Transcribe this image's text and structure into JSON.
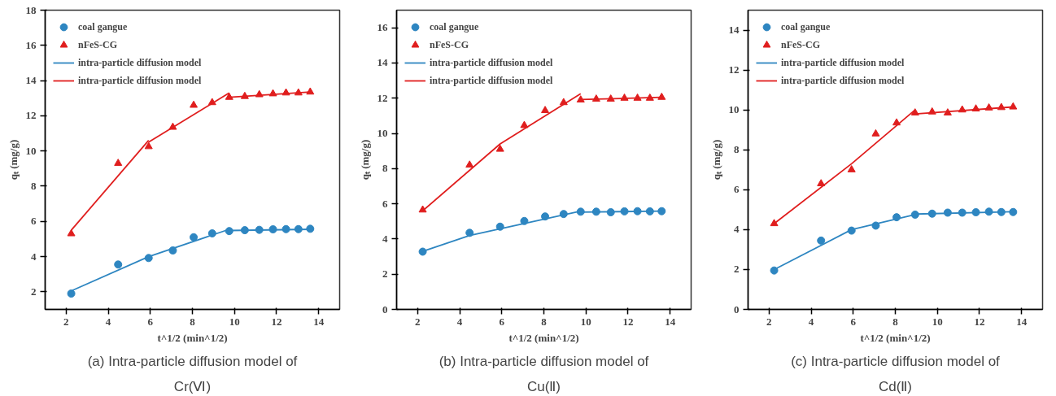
{
  "chart_data": [
    {
      "type": "scatter",
      "xlabel": "t^1/2 (min^1/2)",
      "ylabel": "qₜ (mg/g)",
      "xlim": [
        1,
        15
      ],
      "xticks": [
        2,
        4,
        6,
        8,
        10,
        12,
        14
      ],
      "ylim": [
        1,
        18
      ],
      "yticks": [
        2,
        4,
        6,
        8,
        10,
        12,
        14,
        16,
        18
      ],
      "legend": "top left",
      "annotations": [
        "(a) Intra-particle diffusion model of",
        "Cr(Ⅵ)"
      ],
      "series": [
        {
          "name": "coal gangue",
          "marker": "circle",
          "color": "#2e86c1",
          "x": [
            2.24,
            4.47,
            5.92,
            7.07,
            8.06,
            8.94,
            9.75,
            10.49,
            11.18,
            11.83,
            12.45,
            13.04,
            13.6
          ],
          "values": [
            1.9,
            3.55,
            3.92,
            4.35,
            5.1,
            5.32,
            5.45,
            5.5,
            5.52,
            5.55,
            5.56,
            5.56,
            5.58
          ]
        },
        {
          "name": "nFeS-CG",
          "marker": "triangle",
          "color": "#e01e1e",
          "x": [
            2.24,
            4.47,
            5.92,
            7.07,
            8.06,
            8.94,
            9.75,
            10.49,
            11.18,
            11.83,
            12.45,
            13.04,
            13.6
          ],
          "values": [
            5.3,
            9.3,
            10.25,
            11.35,
            12.6,
            12.75,
            13.05,
            13.1,
            13.2,
            13.25,
            13.3,
            13.3,
            13.35
          ]
        },
        {
          "name": "intra-particle diffusion model",
          "type": "line",
          "color": "#2e86c1",
          "x": [
            2.24,
            5.92,
            9.75
          ],
          "values": [
            2.05,
            4.0,
            5.55
          ]
        },
        {
          "name": "intra-particle diffusion model",
          "type": "line",
          "color": "#e01e1e",
          "x": [
            2.24,
            5.92
          ],
          "values": [
            5.5,
            10.6
          ]
        },
        {
          "type": "line",
          "color": "#2e86c1",
          "x": [
            9.75,
            13.6
          ],
          "values": [
            5.48,
            5.55
          ]
        },
        {
          "type": "line",
          "color": "#e01e1e",
          "x": [
            5.92,
            9.75
          ],
          "values": [
            10.5,
            13.3
          ]
        },
        {
          "type": "line",
          "color": "#e01e1e",
          "x": [
            9.75,
            13.6
          ],
          "values": [
            13.05,
            13.35
          ]
        }
      ]
    },
    {
      "type": "scatter",
      "xlabel": "t^1/2 (min^1/2)",
      "ylabel": "qₜ (mg/g)",
      "xlim": [
        1,
        15
      ],
      "xticks": [
        2,
        4,
        6,
        8,
        10,
        12,
        14
      ],
      "ylim": [
        0,
        17
      ],
      "yticks": [
        0,
        2,
        4,
        6,
        8,
        10,
        12,
        14,
        16
      ],
      "legend": "top left",
      "annotations": [
        "(b) Intra-particle diffusion model of",
        "Cu(Ⅱ)"
      ],
      "series": [
        {
          "name": "coal gangue",
          "marker": "circle",
          "color": "#2e86c1",
          "x": [
            2.24,
            4.47,
            5.92,
            7.07,
            8.06,
            8.94,
            9.75,
            10.49,
            11.18,
            11.83,
            12.45,
            13.04,
            13.6
          ],
          "values": [
            3.28,
            4.35,
            4.7,
            5.02,
            5.28,
            5.42,
            5.55,
            5.55,
            5.52,
            5.57,
            5.58,
            5.57,
            5.58
          ]
        },
        {
          "name": "nFeS-CG",
          "marker": "triangle",
          "color": "#e01e1e",
          "x": [
            2.24,
            4.47,
            5.92,
            7.07,
            8.06,
            8.94,
            9.75,
            10.49,
            11.18,
            11.83,
            12.45,
            13.04,
            13.6
          ],
          "values": [
            5.65,
            8.2,
            9.1,
            10.45,
            11.3,
            11.75,
            11.9,
            11.95,
            11.95,
            12.0,
            12.0,
            12.0,
            12.05
          ]
        },
        {
          "name": "intra-particle diffusion model",
          "type": "line",
          "color": "#2e86c1",
          "x": [
            2.24,
            4.47,
            9.75
          ],
          "values": [
            3.3,
            4.2,
            5.58
          ]
        },
        {
          "name": "intra-particle diffusion model",
          "type": "line",
          "color": "#e01e1e",
          "x": [
            2.24,
            5.92,
            9.75
          ],
          "values": [
            5.6,
            9.4,
            12.25
          ]
        },
        {
          "type": "line",
          "color": "#2e86c1",
          "x": [
            9.75,
            13.6
          ],
          "values": [
            5.53,
            5.58
          ]
        },
        {
          "type": "line",
          "color": "#e01e1e",
          "x": [
            9.75,
            13.6
          ],
          "values": [
            11.92,
            12.05
          ]
        }
      ]
    },
    {
      "type": "scatter",
      "xlabel": "t^1/2 (min^1/2)",
      "ylabel": "qₜ (mg/g)",
      "xlim": [
        1,
        15
      ],
      "xticks": [
        2,
        4,
        6,
        8,
        10,
        12,
        14
      ],
      "ylim": [
        0,
        15
      ],
      "yticks": [
        0,
        2,
        4,
        6,
        8,
        10,
        12,
        14
      ],
      "legend": "top left",
      "annotations": [
        "(c) Intra-particle diffusion model of",
        "Cd(Ⅱ)"
      ],
      "series": [
        {
          "name": "coal gangue",
          "marker": "circle",
          "color": "#2e86c1",
          "x": [
            2.24,
            4.47,
            5.92,
            7.07,
            8.06,
            8.94,
            9.75,
            10.49,
            11.18,
            11.83,
            12.45,
            13.04,
            13.6
          ],
          "values": [
            1.95,
            3.45,
            3.95,
            4.2,
            4.62,
            4.75,
            4.8,
            4.85,
            4.85,
            4.87,
            4.9,
            4.88,
            4.88
          ]
        },
        {
          "name": "nFeS-CG",
          "marker": "triangle",
          "color": "#e01e1e",
          "x": [
            2.24,
            4.47,
            5.92,
            7.07,
            8.06,
            8.94,
            9.75,
            10.49,
            11.18,
            11.83,
            12.45,
            13.04,
            13.6
          ],
          "values": [
            4.3,
            6.3,
            7.0,
            8.8,
            9.35,
            9.85,
            9.9,
            9.85,
            10.0,
            10.05,
            10.1,
            10.12,
            10.15
          ]
        },
        {
          "name": "intra-particle diffusion model",
          "type": "line",
          "color": "#2e86c1",
          "x": [
            2.24,
            5.92,
            8.94
          ],
          "values": [
            2.0,
            4.0,
            4.75
          ]
        },
        {
          "name": "intra-particle diffusion model",
          "type": "line",
          "color": "#e01e1e",
          "x": [
            2.24,
            5.92,
            8.94
          ],
          "values": [
            4.3,
            7.3,
            10.0
          ]
        },
        {
          "type": "line",
          "color": "#2e86c1",
          "x": [
            8.94,
            13.6
          ],
          "values": [
            4.78,
            4.9
          ]
        },
        {
          "type": "line",
          "color": "#e01e1e",
          "x": [
            8.94,
            13.6
          ],
          "values": [
            9.8,
            10.15
          ]
        }
      ]
    }
  ]
}
